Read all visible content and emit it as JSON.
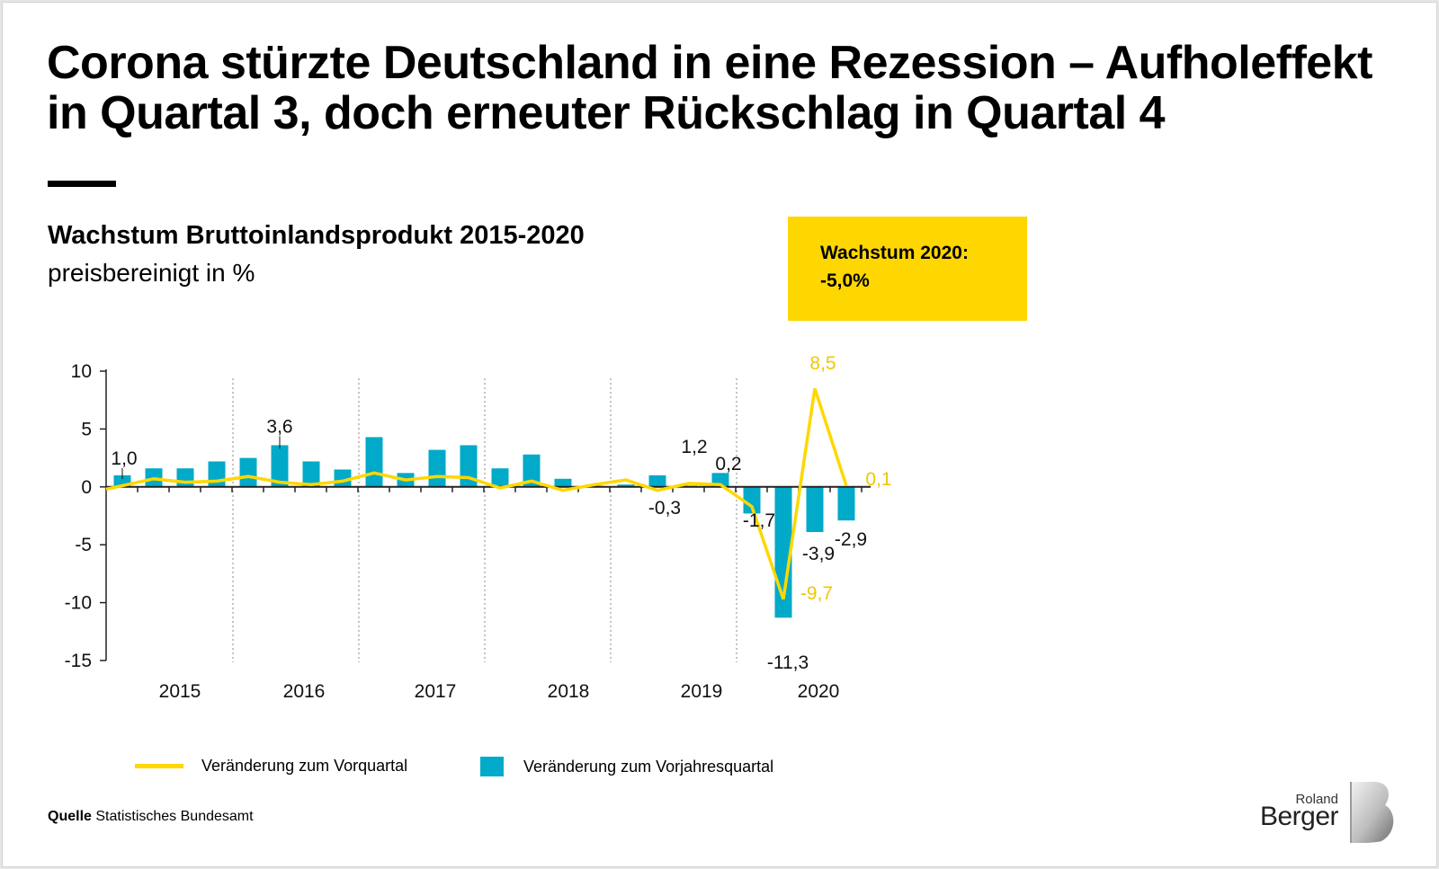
{
  "header": {
    "title_line1": "Corona stürzte Deutschland in eine Rezession – Aufholeffekt",
    "title_line2": "in Quartal 3, doch erneuter Rückschlag in Quartal 4",
    "subtitle": "Wachstum Bruttoinlandsprodukt 2015-2020",
    "unit_note": "preisbereinigt in %"
  },
  "highlight": {
    "label": "Wachstum 2020:",
    "value": "-5,0%"
  },
  "legend": {
    "line_label": "Veränderung zum Vorquartal",
    "bar_label": "Veränderung zum Vorjahresquartal"
  },
  "source": {
    "label": "Quelle",
    "text": "Statistisches Bundesamt"
  },
  "logo": {
    "top": "Roland",
    "bottom": "Berger"
  },
  "colors": {
    "line": "#ffd700",
    "bar": "#00aac8",
    "highlight": "#ffd700",
    "label_yellow": "#f0c800"
  },
  "chart_data": {
    "type": "bar",
    "title": "Wachstum Bruttoinlandsprodukt 2015-2020",
    "ylabel": "preisbereinigt in %",
    "ylim": [
      -15,
      10
    ],
    "yticks": [
      10,
      5,
      0,
      -5,
      -10,
      -15
    ],
    "ytick_labels": [
      "10",
      "5",
      "0",
      "-5",
      "-10",
      "-15"
    ],
    "years": [
      "2015",
      "2016",
      "2017",
      "2018",
      "2019",
      "2020"
    ],
    "quarters": [
      "Q1 2015",
      "Q2 2015",
      "Q3 2015",
      "Q4 2015",
      "Q1 2016",
      "Q2 2016",
      "Q3 2016",
      "Q4 2016",
      "Q1 2017",
      "Q2 2017",
      "Q3 2017",
      "Q4 2017",
      "Q1 2018",
      "Q2 2018",
      "Q3 2018",
      "Q4 2018",
      "Q1 2019",
      "Q2 2019",
      "Q3 2019",
      "Q4 2019",
      "Q1 2020",
      "Q2 2020",
      "Q3 2020",
      "Q4 2020"
    ],
    "series": [
      {
        "name": "Veränderung zum Vorjahresquartal",
        "type": "bar",
        "values": [
          1.0,
          1.6,
          1.6,
          2.2,
          2.5,
          3.6,
          2.2,
          1.5,
          4.3,
          1.2,
          3.2,
          3.6,
          1.6,
          2.8,
          0.7,
          0.1,
          0.2,
          1.0,
          0.1,
          1.2,
          -2.3,
          -11.3,
          -3.9,
          -2.9
        ]
      },
      {
        "name": "Veränderung zum Vorquartal",
        "type": "line",
        "values": [
          -0.2,
          0.7,
          0.4,
          0.5,
          0.9,
          0.4,
          0.2,
          0.5,
          1.2,
          0.6,
          0.9,
          0.8,
          -0.1,
          0.5,
          -0.3,
          0.2,
          0.6,
          -0.3,
          0.3,
          0.2,
          -1.7,
          -9.7,
          8.5,
          0.1
        ]
      }
    ],
    "annotations": [
      {
        "series": "bar",
        "index": 0,
        "text": "1,0"
      },
      {
        "series": "bar",
        "index": 5,
        "text": "3,6"
      },
      {
        "series": "line",
        "index": 17,
        "text": "-0,3"
      },
      {
        "series": "bar",
        "index": 19,
        "text": "1,2"
      },
      {
        "series": "line",
        "index": 19,
        "text": "0,2"
      },
      {
        "series": "line",
        "index": 20,
        "text": "-1,7"
      },
      {
        "series": "bar",
        "index": 21,
        "text": "-11,3"
      },
      {
        "series": "bar",
        "index": 22,
        "text": "-3,9"
      },
      {
        "series": "bar",
        "index": 23,
        "text": "-2,9"
      },
      {
        "series": "line",
        "index": 21,
        "text": "-9,7"
      },
      {
        "series": "line",
        "index": 22,
        "text": "8,5"
      },
      {
        "series": "line",
        "index": 23,
        "text": "0,1"
      }
    ]
  }
}
